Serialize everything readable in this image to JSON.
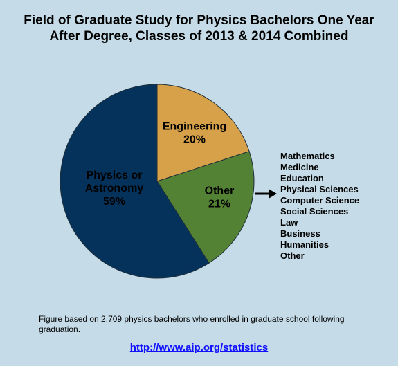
{
  "chart_data": {
    "type": "pie",
    "title_lines": [
      "Field of Graduate Study for Physics Bachelors One Year",
      "After Degree, Classes of 2013 & 2014 Combined"
    ],
    "slices": [
      {
        "label_lines": [
          "Engineering"
        ],
        "value": 20,
        "value_label": "20%",
        "color": "#d7a14a",
        "text_color": "#000000"
      },
      {
        "label_lines": [
          "Other"
        ],
        "value": 21,
        "value_label": "21%",
        "color": "#548235",
        "text_color": "#000000"
      },
      {
        "label_lines": [
          "Physics or",
          "Astronomy"
        ],
        "value": 59,
        "value_label": "59%",
        "color": "#05325a",
        "text_color": "#ffffff"
      }
    ],
    "start_angle_deg": 0,
    "direction": "clockwise",
    "other_breakdown": [
      "Mathematics",
      "Medicine",
      "Education",
      "Physical Sciences",
      "Computer Science",
      "Social Sciences",
      "Law",
      "Business",
      "Humanities",
      "Other"
    ]
  },
  "footnote": "Figure based on 2,709 physics bachelors who enrolled in graduate school following graduation.",
  "source_link": "http://www.aip.org/statistics",
  "colors": {
    "background": "#c5dce8",
    "link": "#1010ff",
    "slice_border": "#1f2d3a"
  }
}
